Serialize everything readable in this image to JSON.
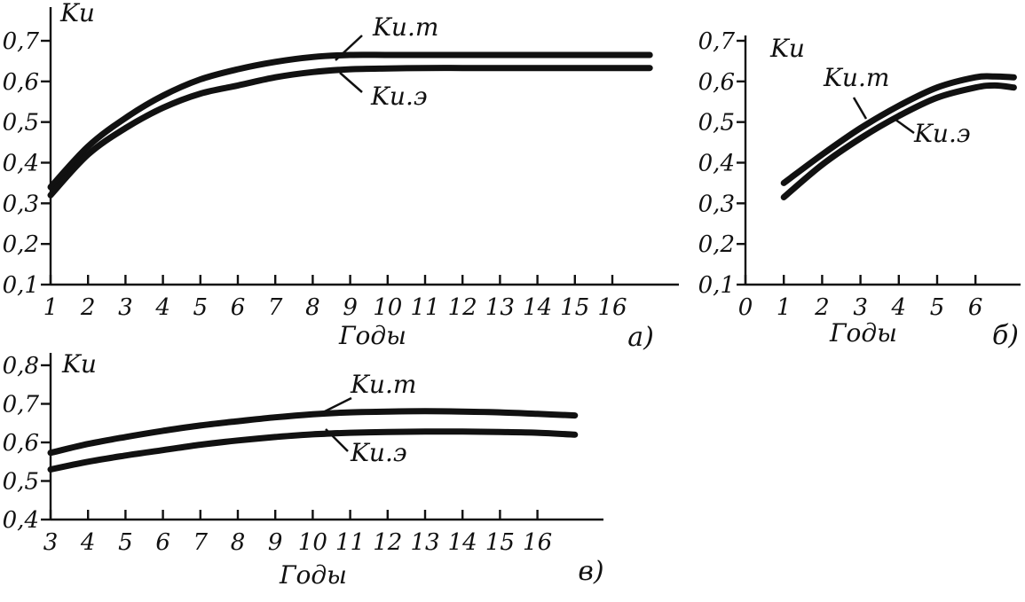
{
  "chart_data": [
    {
      "type": "line",
      "panel_label": "а)",
      "ylabel": "Kи",
      "xlabel": "Годы",
      "x": [
        1,
        2,
        3,
        4,
        5,
        6,
        7,
        8,
        9,
        10,
        11,
        12,
        13,
        14,
        15,
        16,
        17
      ],
      "x_ticks": [
        1,
        2,
        3,
        4,
        5,
        6,
        7,
        8,
        9,
        10,
        11,
        12,
        13,
        14,
        15,
        16
      ],
      "y_ticks": [
        "0,1",
        "0,2",
        "0,3",
        "0,4",
        "0,5",
        "0,6",
        "0,7"
      ],
      "ylim": [
        0.1,
        0.7
      ],
      "series": [
        {
          "name": "Kи.т",
          "values": [
            0.34,
            0.44,
            0.51,
            0.565,
            0.605,
            0.63,
            0.648,
            0.66,
            0.665,
            0.665,
            0.665,
            0.665,
            0.665,
            0.665,
            0.665,
            0.665,
            0.665
          ]
        },
        {
          "name": "Kи.э",
          "values": [
            0.32,
            0.42,
            0.485,
            0.535,
            0.57,
            0.59,
            0.61,
            0.623,
            0.63,
            0.632,
            0.633,
            0.633,
            0.633,
            0.633,
            0.633,
            0.633,
            0.633
          ]
        }
      ]
    },
    {
      "type": "line",
      "panel_label": "б)",
      "ylabel": "Kи",
      "xlabel": "Годы",
      "x": [
        1,
        2,
        3,
        4,
        5,
        6,
        6.5,
        7
      ],
      "x_ticks": [
        0,
        1,
        2,
        3,
        4,
        5,
        6
      ],
      "y_ticks": [
        "0,1",
        "0,2",
        "0,3",
        "0,4",
        "0,5",
        "0,6",
        "0,7"
      ],
      "ylim": [
        0.1,
        0.7
      ],
      "series": [
        {
          "name": "Kи.т",
          "values": [
            0.35,
            0.42,
            0.485,
            0.54,
            0.585,
            0.61,
            0.612,
            0.61
          ]
        },
        {
          "name": "Kи.э",
          "values": [
            0.315,
            0.395,
            0.46,
            0.515,
            0.56,
            0.585,
            0.59,
            0.585
          ]
        }
      ]
    },
    {
      "type": "line",
      "panel_label": "в)",
      "ylabel": "Kи",
      "xlabel": "Годы",
      "x": [
        3,
        4,
        5,
        6,
        7,
        8,
        9,
        10,
        11,
        12,
        13,
        14,
        15,
        16,
        17
      ],
      "x_ticks": [
        3,
        4,
        5,
        6,
        7,
        8,
        9,
        10,
        11,
        12,
        13,
        14,
        15,
        16
      ],
      "y_ticks": [
        "0,4",
        "0,5",
        "0,6",
        "0,7",
        "0,8"
      ],
      "ylim": [
        0.4,
        0.8
      ],
      "series": [
        {
          "name": "Kи.т",
          "values": [
            0.573,
            0.596,
            0.614,
            0.63,
            0.644,
            0.655,
            0.665,
            0.673,
            0.678,
            0.68,
            0.681,
            0.68,
            0.678,
            0.674,
            0.67
          ]
        },
        {
          "name": "Kи.э",
          "values": [
            0.53,
            0.55,
            0.566,
            0.58,
            0.594,
            0.605,
            0.614,
            0.621,
            0.625,
            0.627,
            0.628,
            0.628,
            0.627,
            0.625,
            0.62
          ]
        }
      ]
    }
  ]
}
